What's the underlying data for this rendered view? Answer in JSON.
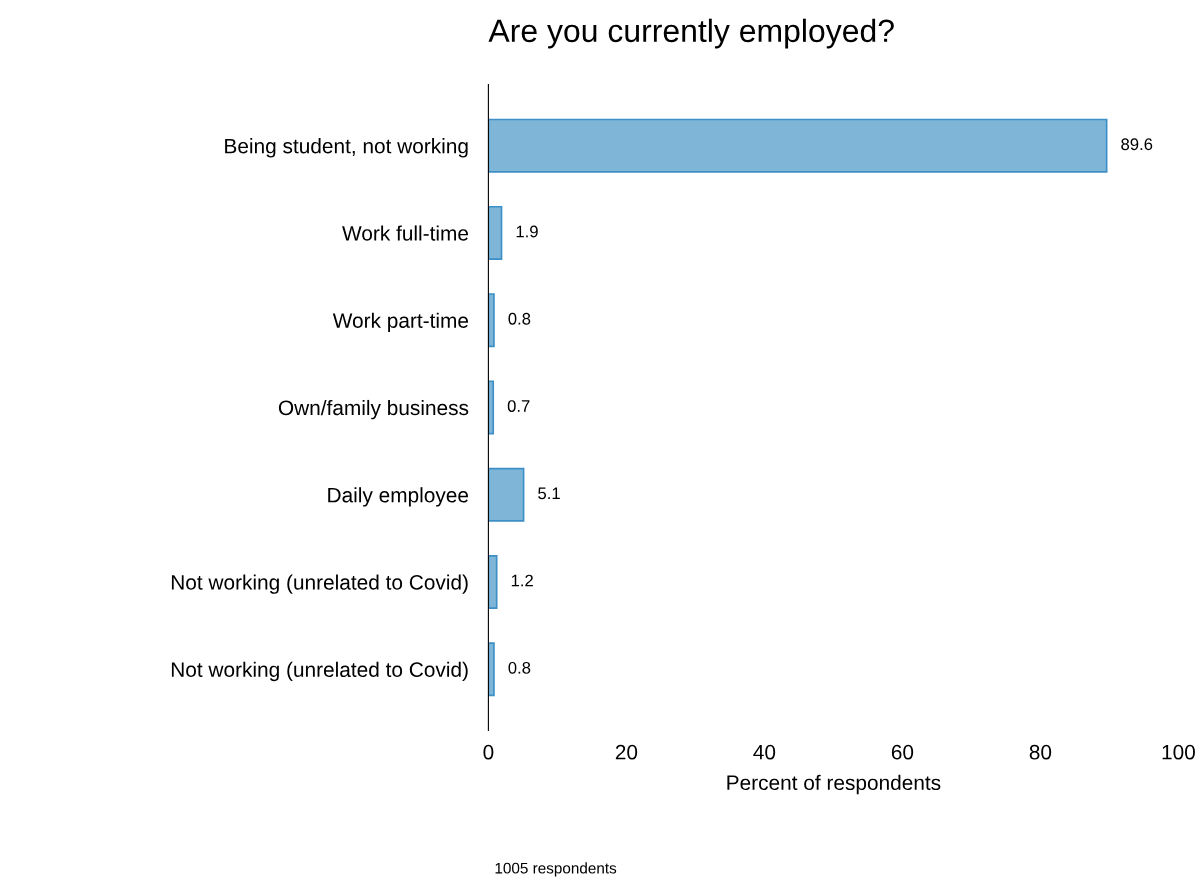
{
  "chart_data": {
    "type": "bar",
    "orientation": "horizontal",
    "title": "Are you currently employed?",
    "categories": [
      "Being student, not working",
      "Work full-time",
      "Work part-time",
      "Own/family business",
      "Daily employee",
      "Not working (unrelated to Covid)",
      "Not working (unrelated to Covid)"
    ],
    "values": [
      89.6,
      1.9,
      0.8,
      0.7,
      5.1,
      1.2,
      0.8
    ],
    "color": "#7fb6d8",
    "xlabel": "Percent of respondents",
    "xlim": [
      0,
      100
    ],
    "xticks": [
      0,
      20,
      40,
      60,
      80,
      100
    ],
    "data_labels": true,
    "grid": false,
    "legend": false,
    "annotations": [
      "1005 respondents"
    ]
  }
}
